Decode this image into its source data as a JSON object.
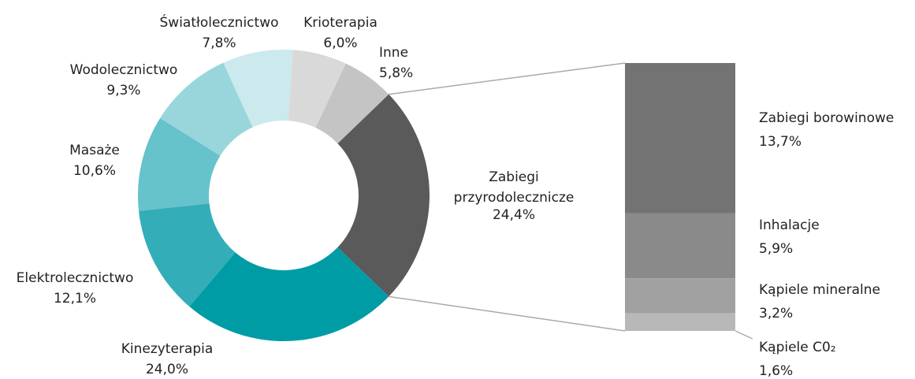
{
  "chart_data": {
    "type": "bar-of-pie",
    "pie": {
      "categories": [
        "Zabiegi przyrodolecznicze",
        "Kinezyterapia",
        "Elektrolecznictwo",
        "Masaże",
        "Wodolecznictwo",
        "Światłolecznictwo",
        "Krioterapia",
        "Inne"
      ],
      "values": [
        24.4,
        24.0,
        12.1,
        10.6,
        9.3,
        7.8,
        6.0,
        5.8
      ],
      "value_labels": [
        "24,4%",
        "24,0%",
        "12,1%",
        "10,6%",
        "9,3%",
        "7,8%",
        "6,0%",
        "5,8%"
      ],
      "colors": [
        "#5a5a5a",
        "#009ca6",
        "#33adb8",
        "#66c2cb",
        "#99d6dc",
        "#cce9ed",
        "#d9d9d9",
        "#c4c4c4"
      ]
    },
    "bar": {
      "categories": [
        "Zabiegi borowinowe",
        "Inhalacje",
        "Kąpiele mineralne",
        "Kąpiele C0₂"
      ],
      "values": [
        13.7,
        5.9,
        3.2,
        1.6
      ],
      "value_labels": [
        "13,7%",
        "5,9%",
        "3,2%",
        "1,6%"
      ],
      "colors": [
        "#737373",
        "#8a8a8a",
        "#a0a0a0",
        "#b8b8b8"
      ]
    }
  }
}
